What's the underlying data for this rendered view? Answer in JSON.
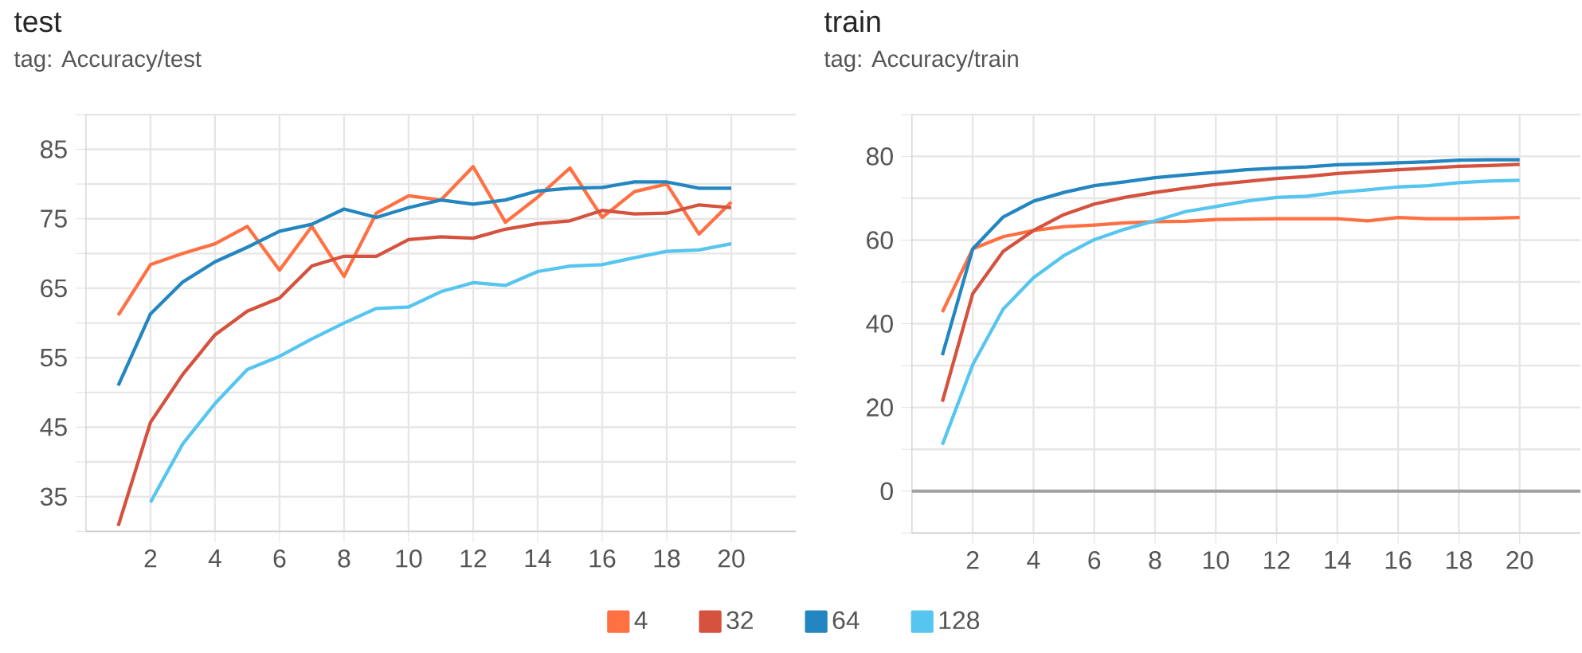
{
  "chart_data": [
    {
      "type": "line",
      "title": "test",
      "subtitle": "tag: Accuracy/test",
      "x": [
        1,
        2,
        3,
        4,
        5,
        6,
        7,
        8,
        9,
        10,
        11,
        12,
        13,
        14,
        15,
        16,
        17,
        18,
        19,
        20
      ],
      "series": [
        {
          "name": "4",
          "color": "#ff7043",
          "values": [
            61.1,
            68.4,
            70.0,
            71.4,
            73.9,
            67.6,
            73.9,
            66.7,
            75.8,
            78.3,
            77.7,
            82.5,
            74.5,
            78.1,
            82.3,
            75.2,
            78.9,
            80.0,
            72.8,
            77.4
          ]
        },
        {
          "name": "32",
          "color": "#d4523e",
          "values": [
            30.8,
            45.7,
            52.6,
            58.3,
            61.7,
            63.6,
            68.2,
            69.6,
            69.6,
            72.0,
            72.4,
            72.2,
            73.5,
            74.3,
            74.7,
            76.2,
            75.7,
            75.8,
            77.0,
            76.6
          ]
        },
        {
          "name": "64",
          "color": "#2386c0",
          "values": [
            51.0,
            61.3,
            65.9,
            68.8,
            70.9,
            73.2,
            74.2,
            76.4,
            75.2,
            76.6,
            77.7,
            77.1,
            77.7,
            79.0,
            79.4,
            79.5,
            80.3,
            80.3,
            79.4,
            79.4
          ]
        },
        {
          "name": "128",
          "color": "#56c5ef",
          "values": [
            null,
            34.2,
            42.6,
            48.4,
            53.3,
            55.2,
            57.7,
            60.0,
            62.1,
            62.3,
            64.5,
            65.8,
            65.4,
            67.4,
            68.2,
            68.4,
            69.4,
            70.3,
            70.5,
            71.4
          ]
        }
      ],
      "xlim": [
        0,
        22
      ],
      "xticks": [
        2,
        4,
        6,
        8,
        10,
        12,
        14,
        16,
        18,
        20
      ],
      "ylim": [
        30,
        90
      ],
      "yticks": [
        {
          "value": 30,
          "label": null
        },
        35,
        {
          "value": 40,
          "label": null
        },
        45,
        {
          "value": 50,
          "label": null
        },
        55,
        {
          "value": 60,
          "label": null
        },
        65,
        {
          "value": 70,
          "label": null
        },
        75,
        {
          "value": 80,
          "label": null
        },
        85,
        {
          "value": 90,
          "label": null
        }
      ],
      "grid": true,
      "legend": "bottom"
    },
    {
      "type": "line",
      "title": "train",
      "subtitle": "tag: Accuracy/train",
      "x": [
        1,
        2,
        3,
        4,
        5,
        6,
        7,
        8,
        9,
        10,
        11,
        12,
        13,
        14,
        15,
        16,
        17,
        18,
        19,
        20
      ],
      "series": [
        {
          "color": "#ff7043",
          "values": [
            42.8,
            57.9,
            60.8,
            62.3,
            63.2,
            63.6,
            64.1,
            64.4,
            64.5,
            64.9,
            65.0,
            65.1,
            65.1,
            65.1,
            64.6,
            65.4,
            65.1,
            65.1,
            65.2,
            65.4
          ]
        },
        {
          "color": "#d4523e",
          "values": [
            21.4,
            47.2,
            57.3,
            62.3,
            66.1,
            68.6,
            70.2,
            71.4,
            72.4,
            73.3,
            74.0,
            74.7,
            75.2,
            75.9,
            76.4,
            76.8,
            77.2,
            77.6,
            77.8,
            78.1
          ]
        },
        {
          "color": "#2386c0",
          "values": [
            32.5,
            57.9,
            65.5,
            69.3,
            71.4,
            73.0,
            73.9,
            74.9,
            75.6,
            76.2,
            76.8,
            77.2,
            77.5,
            78.0,
            78.2,
            78.5,
            78.7,
            79.1,
            79.2,
            79.2
          ]
        },
        {
          "color": "#56c5ef",
          "values": [
            11.1,
            30.2,
            43.5,
            51.0,
            56.3,
            60.1,
            62.6,
            64.6,
            66.8,
            68.0,
            69.3,
            70.2,
            70.5,
            71.4,
            72.0,
            72.7,
            73.0,
            73.7,
            74.1,
            74.3
          ]
        }
      ],
      "xlim": [
        0,
        22
      ],
      "xticks": [
        2,
        4,
        6,
        8,
        10,
        12,
        14,
        16,
        18,
        20
      ],
      "ylim": [
        -10,
        90
      ],
      "yticks": [
        {
          "value": -10,
          "label": null
        },
        0,
        {
          "value": 10,
          "label": null
        },
        20,
        {
          "value": 30,
          "label": null
        },
        40,
        {
          "value": 50,
          "label": null
        },
        60,
        {
          "value": 70,
          "label": null
        },
        80,
        {
          "value": 90,
          "label": null
        }
      ],
      "ref_lines": [
        {
          "axis": "y",
          "value": 0,
          "color": "#a0a0a0"
        }
      ],
      "grid": true
    }
  ]
}
